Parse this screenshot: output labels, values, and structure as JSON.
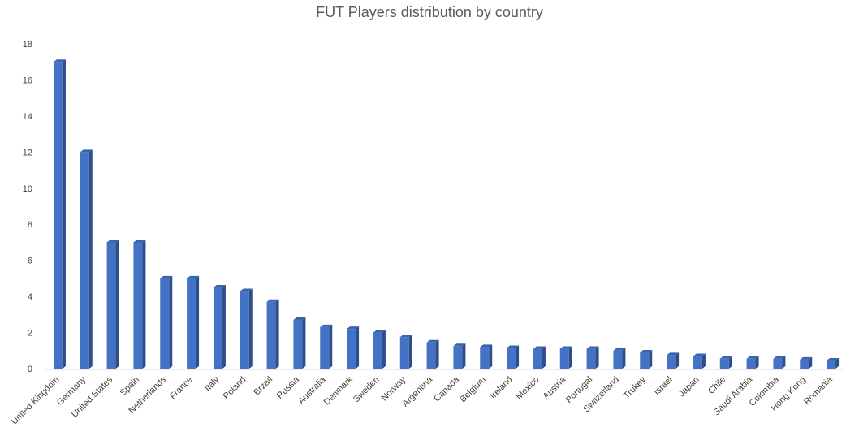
{
  "chart_data": {
    "type": "bar",
    "title": "FUT Players distribution by country",
    "xlabel": "",
    "ylabel": "",
    "ylim": [
      0,
      18
    ],
    "yticks": [
      "0",
      "2",
      "4",
      "6",
      "8",
      "10",
      "12",
      "14",
      "16",
      "18"
    ],
    "grid": false,
    "legend": "none",
    "style": "3d-column",
    "colors": {
      "front": "#4472C4",
      "side": "#2B4E8C",
      "top": "#3A63AD",
      "axis": "#D9D9D9"
    },
    "categories": [
      "United Kingdom",
      "Germany",
      "United States",
      "Spain",
      "Netherlands",
      "France",
      "Italy",
      "Poland",
      "Brzail",
      "Russia",
      "Australia",
      "Denmark",
      "Sweden",
      "Norway",
      "Argentina",
      "Canada",
      "Belgium",
      "Ireland",
      "Mexico",
      "Austria",
      "Portugal",
      "Switzerland",
      "Trukey",
      "Israel",
      "Japan",
      "Chile",
      "Saudi Arabia",
      "Colombia",
      "Hong Kong",
      "Romania"
    ],
    "values": [
      17.0,
      12.0,
      7.0,
      7.0,
      5.0,
      5.0,
      4.5,
      4.3,
      3.7,
      2.7,
      2.3,
      2.2,
      2.0,
      1.75,
      1.45,
      1.25,
      1.2,
      1.15,
      1.1,
      1.1,
      1.1,
      1.0,
      0.9,
      0.75,
      0.7,
      0.55,
      0.55,
      0.55,
      0.5,
      0.45
    ]
  }
}
